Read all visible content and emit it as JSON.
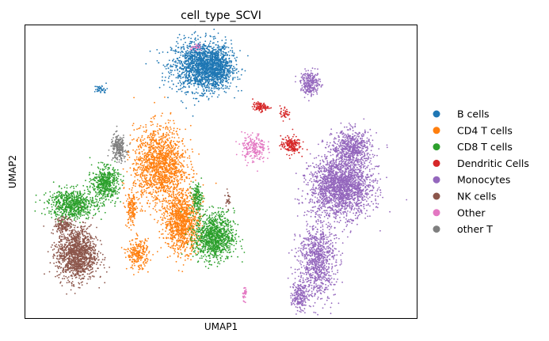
{
  "chart_data": {
    "type": "scatter",
    "title": "cell_type_SCVI",
    "xlabel": "UMAP1",
    "ylabel": "UMAP2",
    "grid": false,
    "ticks": false,
    "legend_placement": "right",
    "series": [
      {
        "name": "B cells",
        "color": "#1f77b4",
        "clusters": [
          {
            "cx": 8.1,
            "cy": 8.6,
            "rx": 1.35,
            "ry": 0.85,
            "n": 1500
          },
          {
            "cx": 8.8,
            "cy": 8.5,
            "rx": 0.7,
            "ry": 0.7,
            "n": 500
          },
          {
            "cx": 3.5,
            "cy": 7.8,
            "rx": 0.3,
            "ry": 0.15,
            "n": 40
          }
        ]
      },
      {
        "name": "CD4 T cells",
        "color": "#ff7f0e",
        "clusters": [
          {
            "cx": 6.2,
            "cy": 5.2,
            "rx": 1.2,
            "ry": 1.3,
            "n": 1500
          },
          {
            "cx": 7.2,
            "cy": 3.3,
            "rx": 0.8,
            "ry": 1.0,
            "n": 1000
          },
          {
            "cx": 5.2,
            "cy": 2.2,
            "rx": 0.5,
            "ry": 0.5,
            "n": 250
          },
          {
            "cx": 4.9,
            "cy": 3.7,
            "rx": 0.25,
            "ry": 0.6,
            "n": 150
          }
        ]
      },
      {
        "name": "CD8 T cells",
        "color": "#2ca02c",
        "clusters": [
          {
            "cx": 2.2,
            "cy": 3.9,
            "rx": 1.1,
            "ry": 0.5,
            "n": 700
          },
          {
            "cx": 3.7,
            "cy": 4.6,
            "rx": 0.6,
            "ry": 0.55,
            "n": 500
          },
          {
            "cx": 8.7,
            "cy": 2.8,
            "rx": 0.9,
            "ry": 0.8,
            "n": 1000
          },
          {
            "cx": 7.9,
            "cy": 4.1,
            "rx": 0.25,
            "ry": 0.5,
            "n": 150
          }
        ]
      },
      {
        "name": "Dendritic Cells",
        "color": "#d62728",
        "clusters": [
          {
            "cx": 10.8,
            "cy": 7.2,
            "rx": 0.35,
            "ry": 0.15,
            "n": 100
          },
          {
            "cx": 12.2,
            "cy": 5.9,
            "rx": 0.45,
            "ry": 0.3,
            "n": 180
          },
          {
            "cx": 11.9,
            "cy": 7.0,
            "rx": 0.2,
            "ry": 0.25,
            "n": 40
          }
        ]
      },
      {
        "name": "Monocytes",
        "color": "#9467bd",
        "clusters": [
          {
            "cx": 14.5,
            "cy": 4.5,
            "rx": 1.4,
            "ry": 1.0,
            "n": 2000
          },
          {
            "cx": 15.0,
            "cy": 5.8,
            "rx": 0.9,
            "ry": 0.6,
            "n": 600
          },
          {
            "cx": 13.1,
            "cy": 8.0,
            "rx": 0.45,
            "ry": 0.4,
            "n": 250
          },
          {
            "cx": 13.4,
            "cy": 2.0,
            "rx": 0.85,
            "ry": 1.3,
            "n": 900
          },
          {
            "cx": 12.6,
            "cy": 0.8,
            "rx": 0.35,
            "ry": 0.5,
            "n": 200
          }
        ]
      },
      {
        "name": "NK cells",
        "color": "#8c564b",
        "clusters": [
          {
            "cx": 2.4,
            "cy": 2.2,
            "rx": 0.9,
            "ry": 0.9,
            "n": 1300
          },
          {
            "cx": 1.8,
            "cy": 3.2,
            "rx": 0.4,
            "ry": 0.25,
            "n": 150
          },
          {
            "cx": 9.3,
            "cy": 4.1,
            "rx": 0.1,
            "ry": 0.25,
            "n": 25
          }
        ]
      },
      {
        "name": "Other",
        "color": "#e377c2",
        "clusters": [
          {
            "cx": 10.5,
            "cy": 5.8,
            "rx": 0.55,
            "ry": 0.5,
            "n": 200
          },
          {
            "cx": 10.1,
            "cy": 0.9,
            "rx": 0.1,
            "ry": 0.25,
            "n": 30
          },
          {
            "cx": 7.9,
            "cy": 9.2,
            "rx": 0.3,
            "ry": 0.1,
            "n": 25
          }
        ]
      },
      {
        "name": "other T",
        "color": "#7f7f7f",
        "clusters": [
          {
            "cx": 4.3,
            "cy": 5.8,
            "rx": 0.35,
            "ry": 0.45,
            "n": 220
          }
        ]
      }
    ],
    "xlim": [
      0,
      18
    ],
    "ylim": [
      0,
      10
    ]
  }
}
